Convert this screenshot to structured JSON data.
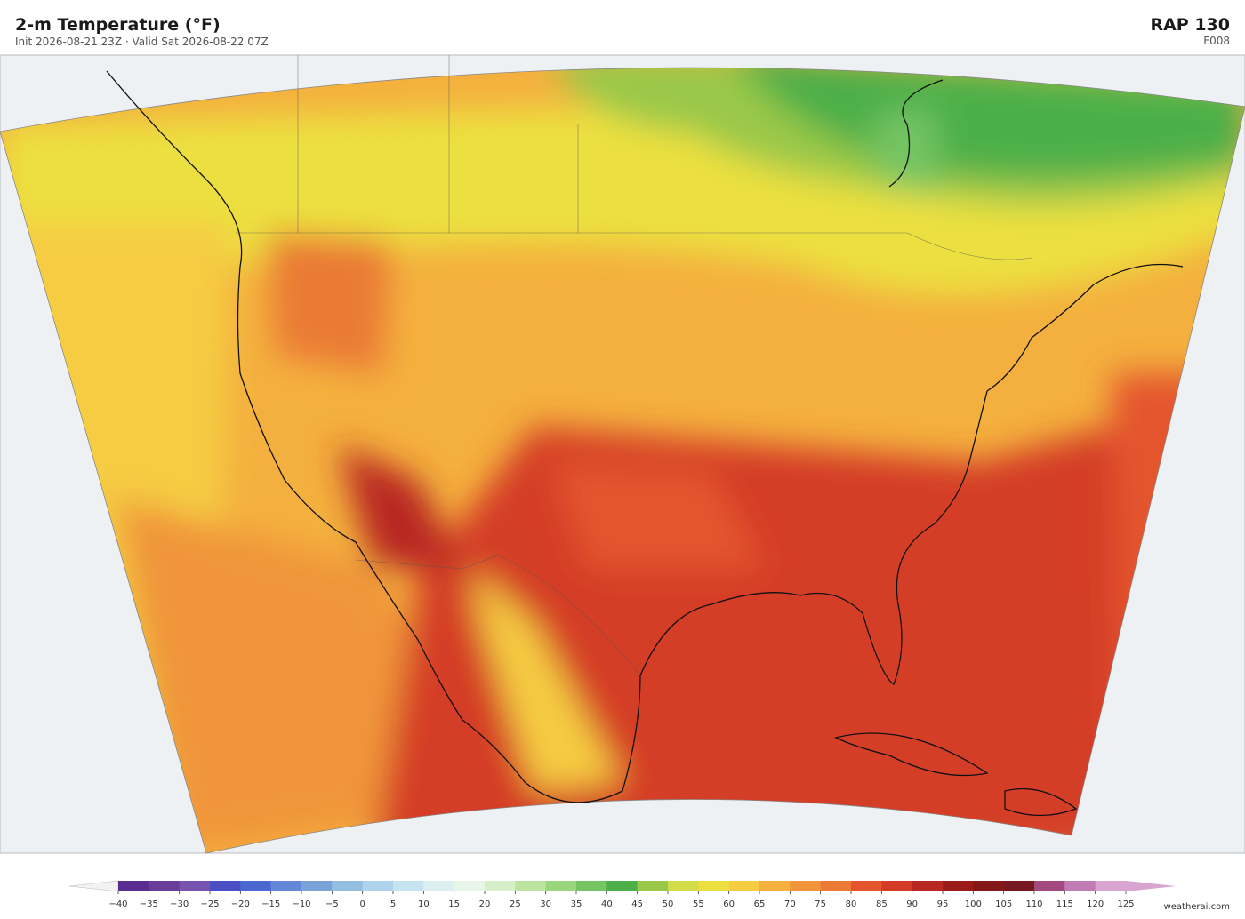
{
  "header": {
    "title": "2-m Temperature  (°F)",
    "subtitle": "Init 2026-08-21 23Z  ·  Valid Sat 2026-08-22 07Z",
    "model": "RAP  130",
    "forecast_hour": "F008"
  },
  "colorbar": {
    "ticks": [
      {
        "value": -40,
        "label": "−40"
      },
      {
        "value": -35,
        "label": "−35"
      },
      {
        "value": -30,
        "label": "−30"
      },
      {
        "value": -25,
        "label": "−25"
      },
      {
        "value": -20,
        "label": "−20"
      },
      {
        "value": -15,
        "label": "−15"
      },
      {
        "value": -10,
        "label": "−10"
      },
      {
        "value": -5,
        "label": "−5"
      },
      0,
      5,
      10,
      15,
      20,
      25,
      30,
      35,
      40,
      45,
      50,
      55,
      60,
      65,
      70,
      75,
      80,
      85,
      90,
      95,
      100,
      105,
      110,
      115,
      120,
      125
    ],
    "colors": [
      "#5b2c91",
      "#6a3d9a",
      "#7654b0",
      "#4b4fc4",
      "#4c68d0",
      "#6488d8",
      "#7aa3da",
      "#95bfe0",
      "#acd3ea",
      "#c6e4f0",
      "#dcf0f2",
      "#e8f6ea",
      "#d6efc8",
      "#bce3a0",
      "#9ad67e",
      "#74c464",
      "#4caf4a",
      "#9ac848",
      "#d2dc48",
      "#ece040",
      "#f5cc42",
      "#f4b03e",
      "#f0953a",
      "#ea7a34",
      "#e4552e",
      "#d43c28",
      "#b82820",
      "#9c1c1c",
      "#821818",
      "#781820",
      "#a24a80",
      "#c07cb4",
      "#d8a4d0"
    ],
    "extend_colors": [
      "#f2f2f2",
      "#d8a4d0"
    ]
  },
  "footer": {
    "credit": "weatherai.com"
  }
}
